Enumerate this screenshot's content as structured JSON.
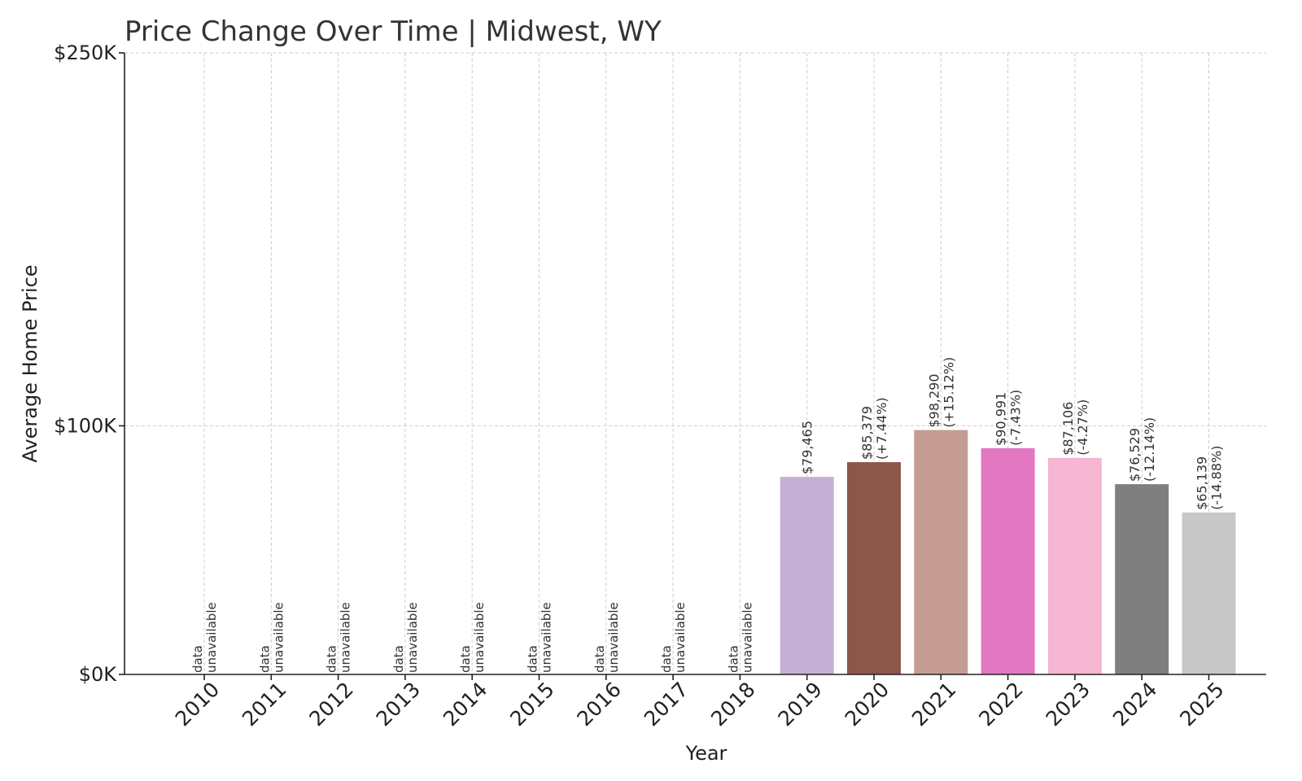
{
  "chart_data": {
    "type": "bar",
    "title": "Price Change Over Time | Midwest, WY",
    "xlabel": "Year",
    "ylabel": "Average Home Price",
    "ylim": [
      0,
      250000
    ],
    "yticks": [
      {
        "value": 0,
        "label": "$0K"
      },
      {
        "value": 100000,
        "label": "$100K"
      },
      {
        "value": 250000,
        "label": "$250K"
      }
    ],
    "grid": true,
    "categories": [
      "2010",
      "2011",
      "2012",
      "2013",
      "2014",
      "2015",
      "2016",
      "2017",
      "2018",
      "2019",
      "2020",
      "2021",
      "2022",
      "2023",
      "2024",
      "2025"
    ],
    "values": [
      null,
      null,
      null,
      null,
      null,
      null,
      null,
      null,
      null,
      79465,
      85379,
      98290,
      90991,
      87106,
      76529,
      65139
    ],
    "value_labels": [
      "",
      "",
      "",
      "",
      "",
      "",
      "",
      "",
      "",
      "$79,465",
      "$85,379",
      "$98,290",
      "$90,991",
      "$87,106",
      "$76,529",
      "$65,139"
    ],
    "change_labels": [
      "",
      "",
      "",
      "",
      "",
      "",
      "",
      "",
      "",
      "",
      "(+7.44%)",
      "(+15.12%)",
      "(-7.43%)",
      "(-4.27%)",
      "(-12.14%)",
      "(-14.88%)"
    ],
    "unavailable_label": [
      "data",
      "unavailable"
    ],
    "colors": [
      "#1f77b4",
      "#ff7f0e",
      "#2ca02c",
      "#d62728",
      "#9467bd",
      "#8c564b",
      "#e377c2",
      "#7f7f7f",
      "#bcbd22",
      "#c5b0d5",
      "#8c564b",
      "#c49c94",
      "#e377c2",
      "#f7b6d2",
      "#7f7f7f",
      "#c7c7c7"
    ]
  }
}
